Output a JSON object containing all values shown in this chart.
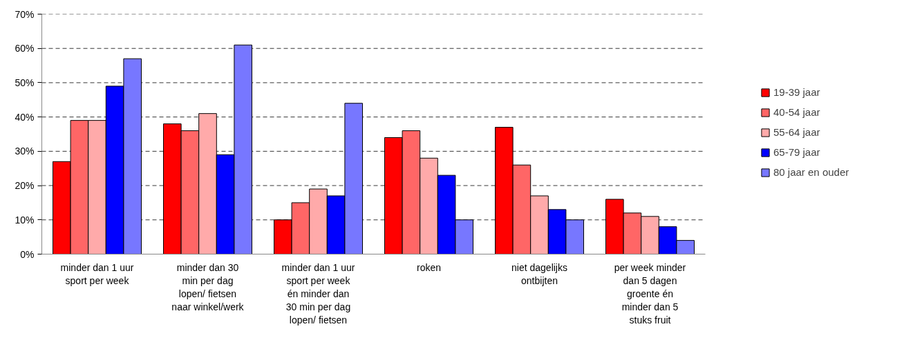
{
  "chart_data": {
    "type": "bar",
    "categories": [
      "minder dan 1 uur\nsport per week",
      "minder dan 30\nmin per dag\nlopen/ fietsen\nnaar winkel/werk",
      "minder dan 1 uur\nsport per week\nén minder dan\n30 min per dag\nlopen/ fietsen",
      "roken",
      "niet dagelijks\nontbijten",
      "per week minder\ndan 5 dagen\ngroente én\nminder dan 5\nstuks fruit"
    ],
    "series": [
      {
        "name": "19-39 jaar",
        "color": "#ff0000",
        "values": [
          27,
          38,
          10,
          34,
          37,
          16
        ]
      },
      {
        "name": "40-54 jaar",
        "color": "#ff6666",
        "values": [
          39,
          36,
          15,
          36,
          26,
          12
        ]
      },
      {
        "name": "55-64 jaar",
        "color": "#ffaaaa",
        "values": [
          39,
          41,
          19,
          28,
          17,
          11
        ]
      },
      {
        "name": "65-79 jaar",
        "color": "#0000ff",
        "values": [
          49,
          29,
          17,
          23,
          13,
          8
        ]
      },
      {
        "name": "80 jaar en ouder",
        "color": "#7777ff",
        "values": [
          57,
          61,
          44,
          10,
          10,
          4
        ]
      }
    ],
    "ylim": [
      0,
      70
    ],
    "yticks": [
      {
        "value": 0,
        "label": "0%"
      },
      {
        "value": 10,
        "label": "10%"
      },
      {
        "value": 20,
        "label": "20%"
      },
      {
        "value": 30,
        "label": "30%"
      },
      {
        "value": 40,
        "label": "40%"
      },
      {
        "value": 50,
        "label": "50%"
      },
      {
        "value": 60,
        "label": "60%"
      },
      {
        "value": 70,
        "label": "70%"
      }
    ],
    "grid": "y",
    "legend": "right"
  }
}
